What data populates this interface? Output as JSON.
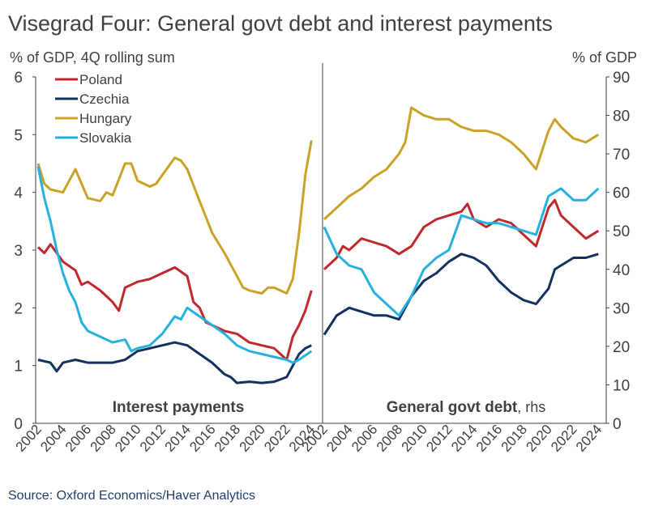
{
  "title": "Visegrad Four: General govt debt and interest payments",
  "source": "Source: Oxford Economics/Haver Analytics",
  "colors": {
    "Poland": "#c0282d",
    "Czechia": "#13305f",
    "Hungary": "#c9a227",
    "Slovakia": "#26b0de",
    "axis": "#404040"
  },
  "chart_data": [
    {
      "type": "line",
      "panel_label": "Interest payments",
      "ylabel": "% of GDP, 4Q rolling sum",
      "ylim": [
        0,
        6
      ],
      "yticks": [
        "0",
        "1",
        "2",
        "3",
        "4",
        "5",
        "6"
      ],
      "xlim": [
        2002,
        2024.5
      ],
      "xticks": [
        "2002",
        "2004",
        "2006",
        "2008",
        "2010",
        "2012",
        "2014",
        "2016",
        "2018",
        "2020",
        "2022",
        "2024"
      ],
      "legend": "top-left",
      "series": [
        {
          "name": "Poland",
          "points": [
            [
              2002,
              3.05
            ],
            [
              2002.5,
              2.95
            ],
            [
              2003,
              3.1
            ],
            [
              2004,
              2.8
            ],
            [
              2005,
              2.65
            ],
            [
              2005.5,
              2.4
            ],
            [
              2006,
              2.45
            ],
            [
              2007,
              2.3
            ],
            [
              2008,
              2.1
            ],
            [
              2008.5,
              1.95
            ],
            [
              2009,
              2.35
            ],
            [
              2010,
              2.45
            ],
            [
              2011,
              2.5
            ],
            [
              2012,
              2.6
            ],
            [
              2012.5,
              2.65
            ],
            [
              2013,
              2.7
            ],
            [
              2014,
              2.55
            ],
            [
              2014.5,
              2.1
            ],
            [
              2015,
              2.0
            ],
            [
              2015.5,
              1.75
            ],
            [
              2016,
              1.7
            ],
            [
              2017,
              1.6
            ],
            [
              2018,
              1.55
            ],
            [
              2019,
              1.4
            ],
            [
              2020,
              1.35
            ],
            [
              2021,
              1.3
            ],
            [
              2021.5,
              1.2
            ],
            [
              2022,
              1.1
            ],
            [
              2022.5,
              1.5
            ],
            [
              2023,
              1.7
            ],
            [
              2023.5,
              1.95
            ],
            [
              2024,
              2.3
            ]
          ]
        },
        {
          "name": "Czechia",
          "points": [
            [
              2002,
              1.1
            ],
            [
              2003,
              1.05
            ],
            [
              2003.5,
              0.9
            ],
            [
              2004,
              1.05
            ],
            [
              2005,
              1.1
            ],
            [
              2006,
              1.05
            ],
            [
              2007,
              1.05
            ],
            [
              2008,
              1.05
            ],
            [
              2009,
              1.1
            ],
            [
              2010,
              1.25
            ],
            [
              2011,
              1.3
            ],
            [
              2012,
              1.35
            ],
            [
              2013,
              1.4
            ],
            [
              2014,
              1.35
            ],
            [
              2015,
              1.2
            ],
            [
              2016,
              1.05
            ],
            [
              2017,
              0.85
            ],
            [
              2017.5,
              0.8
            ],
            [
              2018,
              0.7
            ],
            [
              2019,
              0.72
            ],
            [
              2020,
              0.7
            ],
            [
              2021,
              0.72
            ],
            [
              2022,
              0.8
            ],
            [
              2022.5,
              1.0
            ],
            [
              2023,
              1.2
            ],
            [
              2023.5,
              1.3
            ],
            [
              2024,
              1.35
            ]
          ]
        },
        {
          "name": "Hungary",
          "points": [
            [
              2002,
              4.5
            ],
            [
              2002.5,
              4.15
            ],
            [
              2003,
              4.05
            ],
            [
              2004,
              4.0
            ],
            [
              2004.5,
              4.2
            ],
            [
              2005,
              4.4
            ],
            [
              2005.5,
              4.15
            ],
            [
              2006,
              3.9
            ],
            [
              2007,
              3.85
            ],
            [
              2007.5,
              4.0
            ],
            [
              2008,
              3.95
            ],
            [
              2009,
              4.5
            ],
            [
              2009.5,
              4.5
            ],
            [
              2010,
              4.2
            ],
            [
              2011,
              4.1
            ],
            [
              2011.5,
              4.15
            ],
            [
              2012,
              4.3
            ],
            [
              2013,
              4.6
            ],
            [
              2013.5,
              4.55
            ],
            [
              2014,
              4.4
            ],
            [
              2015,
              3.85
            ],
            [
              2016,
              3.3
            ],
            [
              2017,
              2.95
            ],
            [
              2018,
              2.55
            ],
            [
              2018.5,
              2.35
            ],
            [
              2019,
              2.3
            ],
            [
              2020,
              2.25
            ],
            [
              2020.5,
              2.35
            ],
            [
              2021,
              2.35
            ],
            [
              2021.5,
              2.3
            ],
            [
              2022,
              2.25
            ],
            [
              2022.5,
              2.5
            ],
            [
              2023,
              3.3
            ],
            [
              2023.5,
              4.3
            ],
            [
              2024,
              4.9
            ]
          ]
        },
        {
          "name": "Slovakia",
          "points": [
            [
              2002,
              4.45
            ],
            [
              2002.5,
              3.9
            ],
            [
              2003,
              3.5
            ],
            [
              2003.5,
              3.0
            ],
            [
              2004,
              2.6
            ],
            [
              2004.5,
              2.3
            ],
            [
              2005,
              2.1
            ],
            [
              2005.5,
              1.75
            ],
            [
              2006,
              1.6
            ],
            [
              2007,
              1.5
            ],
            [
              2008,
              1.4
            ],
            [
              2009,
              1.45
            ],
            [
              2009.5,
              1.25
            ],
            [
              2010,
              1.3
            ],
            [
              2011,
              1.35
            ],
            [
              2012,
              1.55
            ],
            [
              2013,
              1.85
            ],
            [
              2013.5,
              1.8
            ],
            [
              2014,
              2.0
            ],
            [
              2015,
              1.85
            ],
            [
              2016,
              1.7
            ],
            [
              2017,
              1.55
            ],
            [
              2018,
              1.35
            ],
            [
              2019,
              1.25
            ],
            [
              2020,
              1.2
            ],
            [
              2021,
              1.15
            ],
            [
              2022,
              1.1
            ],
            [
              2022.5,
              1.05
            ],
            [
              2023,
              1.1
            ],
            [
              2024,
              1.25
            ]
          ]
        }
      ]
    },
    {
      "type": "line",
      "panel_label": "General govt debt",
      "panel_suffix": ", rhs",
      "ylabel": "% of GDP",
      "ylim": [
        0,
        90
      ],
      "yticks": [
        "0",
        "10",
        "20",
        "30",
        "40",
        "50",
        "60",
        "70",
        "80",
        "90"
      ],
      "xlim": [
        2002,
        2024.5
      ],
      "xticks": [
        "2002",
        "2004",
        "2006",
        "2008",
        "2010",
        "2012",
        "2014",
        "2016",
        "2018",
        "2020",
        "2022",
        "2024"
      ],
      "series": [
        {
          "name": "Poland",
          "points": [
            [
              2002,
              40
            ],
            [
              2003,
              43
            ],
            [
              2003.5,
              46
            ],
            [
              2004,
              45
            ],
            [
              2005,
              48
            ],
            [
              2006,
              47
            ],
            [
              2007,
              46
            ],
            [
              2008,
              44
            ],
            [
              2009,
              46
            ],
            [
              2010,
              51
            ],
            [
              2011,
              53
            ],
            [
              2012,
              54
            ],
            [
              2013,
              55
            ],
            [
              2013.5,
              57
            ],
            [
              2014,
              53
            ],
            [
              2015,
              51
            ],
            [
              2016,
              53
            ],
            [
              2017,
              52
            ],
            [
              2018,
              49
            ],
            [
              2019,
              46
            ],
            [
              2020,
              56
            ],
            [
              2020.5,
              58
            ],
            [
              2021,
              54
            ],
            [
              2022,
              51
            ],
            [
              2023,
              48
            ],
            [
              2024,
              50
            ]
          ]
        },
        {
          "name": "Czechia",
          "points": [
            [
              2002,
              23
            ],
            [
              2003,
              28
            ],
            [
              2004,
              30
            ],
            [
              2005,
              29
            ],
            [
              2006,
              28
            ],
            [
              2007,
              28
            ],
            [
              2008,
              27
            ],
            [
              2009,
              33
            ],
            [
              2010,
              37
            ],
            [
              2011,
              39
            ],
            [
              2012,
              42
            ],
            [
              2013,
              44
            ],
            [
              2014,
              43
            ],
            [
              2015,
              41
            ],
            [
              2016,
              37
            ],
            [
              2017,
              34
            ],
            [
              2018,
              32
            ],
            [
              2019,
              31
            ],
            [
              2020,
              35
            ],
            [
              2020.5,
              40
            ],
            [
              2021,
              41
            ],
            [
              2022,
              43
            ],
            [
              2023,
              43
            ],
            [
              2024,
              44
            ]
          ]
        },
        {
          "name": "Hungary",
          "points": [
            [
              2002,
              53
            ],
            [
              2003,
              56
            ],
            [
              2004,
              59
            ],
            [
              2005,
              61
            ],
            [
              2006,
              64
            ],
            [
              2007,
              66
            ],
            [
              2008,
              70
            ],
            [
              2008.5,
              73
            ],
            [
              2009,
              82
            ],
            [
              2010,
              80
            ],
            [
              2011,
              79
            ],
            [
              2012,
              79
            ],
            [
              2013,
              77
            ],
            [
              2014,
              76
            ],
            [
              2015,
              76
            ],
            [
              2016,
              75
            ],
            [
              2017,
              73
            ],
            [
              2018,
              70
            ],
            [
              2019,
              66
            ],
            [
              2020,
              76
            ],
            [
              2020.5,
              79
            ],
            [
              2021,
              77
            ],
            [
              2022,
              74
            ],
            [
              2023,
              73
            ],
            [
              2024,
              75
            ]
          ]
        },
        {
          "name": "Slovakia",
          "points": [
            [
              2002,
              51
            ],
            [
              2003,
              44
            ],
            [
              2004,
              41
            ],
            [
              2005,
              40
            ],
            [
              2006,
              34
            ],
            [
              2007,
              31
            ],
            [
              2008,
              28
            ],
            [
              2009,
              33
            ],
            [
              2010,
              40
            ],
            [
              2011,
              43
            ],
            [
              2012,
              45
            ],
            [
              2013,
              54
            ],
            [
              2014,
              53
            ],
            [
              2015,
              52
            ],
            [
              2016,
              52
            ],
            [
              2017,
              51
            ],
            [
              2018,
              50
            ],
            [
              2019,
              49
            ],
            [
              2020,
              59
            ],
            [
              2021,
              61
            ],
            [
              2022,
              58
            ],
            [
              2023,
              58
            ],
            [
              2024,
              61
            ]
          ]
        }
      ]
    }
  ]
}
